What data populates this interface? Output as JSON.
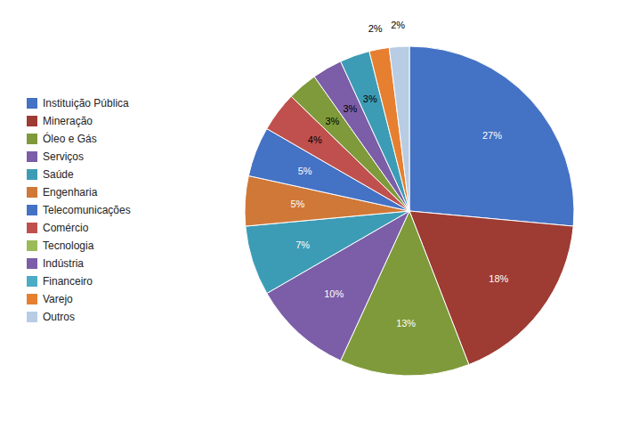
{
  "chart_data": {
    "type": "pie",
    "categories": [
      "Instituição Pública",
      "Mineração",
      "Óleo e Gás",
      "Serviços",
      "Saúde",
      "Engenharia",
      "Telecomunicações",
      "Comércio",
      "Tecnologia",
      "Indústria",
      "Financeiro",
      "Varejo",
      "Outros"
    ],
    "legend_colors": [
      "#4472C4",
      "#9E3B33",
      "#7F9A3A",
      "#7B5EA7",
      "#3D9CB5",
      "#D07838",
      "#4472C4",
      "#C0504D",
      "#9BBB59",
      "#7B5EA7",
      "#4BACC6",
      "#E67F30",
      "#B8CCE4"
    ],
    "values": [
      27,
      18,
      13,
      10,
      7,
      5,
      5,
      4,
      3,
      3,
      3,
      2,
      2
    ],
    "value_labels": [
      "27%",
      "18%",
      "13%",
      "10%",
      "7%",
      "5%",
      "5%",
      "4%",
      "3%",
      "3%",
      "3%",
      "2%",
      "2%"
    ],
    "colors": [
      "#4472C4",
      "#9E3B33",
      "#7F9A3A",
      "#7B5EA7",
      "#3D9CB5",
      "#D07838",
      "#4472C4",
      "#C0504D",
      "#7F9A3A",
      "#7B5EA7",
      "#3D9CB5",
      "#E67F30",
      "#B8CCE4"
    ],
    "data_labels": true,
    "legend": "left"
  }
}
